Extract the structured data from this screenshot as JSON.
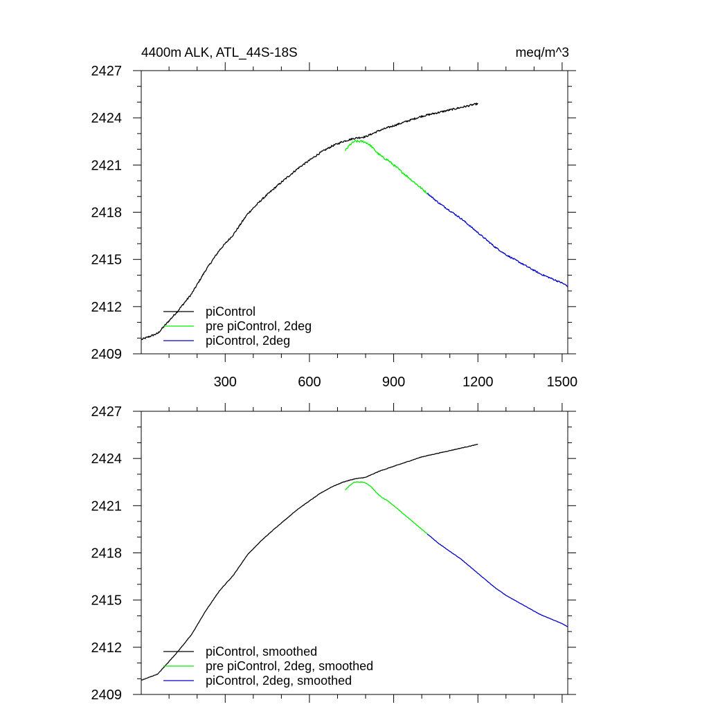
{
  "figure": {
    "title_left": "4400m ALK, ATL_44S-18S",
    "title_right": "meq/m^3"
  },
  "colors": {
    "piControl": "#000000",
    "pre_piControl_2deg": "#00ee00",
    "piControl_2deg": "#0000cc"
  },
  "chart_data": [
    {
      "type": "line",
      "title": "4400m ALK, ATL_44S-18S",
      "units": "meq/m^3",
      "xlim": [
        1,
        1520
      ],
      "ylim": [
        2409,
        2427
      ],
      "xticks": [
        300,
        600,
        900,
        1200,
        1500
      ],
      "xtick_labels": [
        "300",
        "600",
        "900",
        "1200",
        "1500"
      ],
      "yticks": [
        2409,
        2412,
        2415,
        2418,
        2421,
        2424,
        2427
      ],
      "ytick_labels": [
        "2409",
        "2412",
        "2415",
        "2418",
        "2421",
        "2424",
        "2427"
      ],
      "grid": false,
      "legend_position": "bottom-left",
      "series": [
        {
          "name": "piControl",
          "color": "#000000",
          "noise": 0.06,
          "x": [
            1,
            60,
            130,
            180,
            230,
            280,
            330,
            380,
            430,
            480,
            520,
            560,
            600,
            640,
            680,
            720,
            760,
            800,
            850,
            900,
            950,
            1000,
            1050,
            1100,
            1150,
            1200
          ],
          "y": [
            2409.9,
            2410.3,
            2411.7,
            2412.8,
            2414.3,
            2415.6,
            2416.6,
            2417.9,
            2418.8,
            2419.6,
            2420.2,
            2420.8,
            2421.3,
            2421.8,
            2422.2,
            2422.5,
            2422.7,
            2422.8,
            2423.2,
            2423.5,
            2423.8,
            2424.1,
            2424.3,
            2424.5,
            2424.7,
            2424.9
          ]
        },
        {
          "name": "pre piControl, 2deg",
          "color": "#00ee00",
          "noise": 0.07,
          "x": [
            727,
            745,
            760,
            775,
            790,
            805,
            820,
            840,
            860,
            880,
            900,
            920,
            940,
            960,
            980,
            1000,
            1020
          ],
          "y": [
            2421.9,
            2422.3,
            2422.5,
            2422.5,
            2422.5,
            2422.4,
            2422.2,
            2421.8,
            2421.5,
            2421.3,
            2421.0,
            2420.7,
            2420.4,
            2420.1,
            2419.8,
            2419.5,
            2419.2
          ]
        },
        {
          "name": "piControl, 2deg",
          "color": "#0000cc",
          "noise": 0.05,
          "x": [
            1020,
            1060,
            1100,
            1140,
            1180,
            1220,
            1260,
            1300,
            1340,
            1380,
            1420,
            1460,
            1500,
            1520
          ],
          "y": [
            2419.2,
            2418.6,
            2418.1,
            2417.6,
            2417.0,
            2416.4,
            2415.8,
            2415.3,
            2414.9,
            2414.5,
            2414.1,
            2413.8,
            2413.5,
            2413.3
          ]
        }
      ]
    },
    {
      "type": "line",
      "xlim": [
        1,
        1520
      ],
      "ylim": [
        2409,
        2427
      ],
      "xticks": [
        300,
        600,
        900,
        1200,
        1500
      ],
      "xtick_labels": [],
      "yticks": [
        2409,
        2412,
        2415,
        2418,
        2421,
        2424,
        2427
      ],
      "ytick_labels": [
        "2409",
        "2412",
        "2415",
        "2418",
        "2421",
        "2424",
        "2427"
      ],
      "grid": false,
      "legend_position": "bottom-left",
      "series": [
        {
          "name": "piControl, smoothed",
          "color": "#000000",
          "noise": 0.015,
          "x": [
            1,
            60,
            130,
            180,
            230,
            280,
            330,
            380,
            430,
            480,
            520,
            560,
            600,
            640,
            680,
            720,
            760,
            800,
            850,
            900,
            950,
            1000,
            1050,
            1100,
            1150,
            1200
          ],
          "y": [
            2409.9,
            2410.3,
            2411.7,
            2412.8,
            2414.3,
            2415.6,
            2416.6,
            2417.9,
            2418.8,
            2419.6,
            2420.2,
            2420.8,
            2421.3,
            2421.8,
            2422.2,
            2422.5,
            2422.7,
            2422.8,
            2423.2,
            2423.5,
            2423.8,
            2424.1,
            2424.3,
            2424.5,
            2424.7,
            2424.9
          ]
        },
        {
          "name": "pre piControl, 2deg, smoothed",
          "color": "#00ee00",
          "noise": 0.015,
          "x": [
            727,
            745,
            760,
            775,
            790,
            805,
            820,
            840,
            860,
            880,
            900,
            920,
            940,
            960,
            980,
            1000,
            1020
          ],
          "y": [
            2422.0,
            2422.3,
            2422.5,
            2422.5,
            2422.5,
            2422.4,
            2422.2,
            2421.8,
            2421.5,
            2421.3,
            2421.0,
            2420.7,
            2420.4,
            2420.1,
            2419.8,
            2419.5,
            2419.2
          ]
        },
        {
          "name": "piControl, 2deg, smoothed",
          "color": "#0000cc",
          "noise": 0.012,
          "x": [
            1020,
            1060,
            1100,
            1140,
            1180,
            1220,
            1260,
            1300,
            1340,
            1380,
            1420,
            1460,
            1500,
            1520
          ],
          "y": [
            2419.2,
            2418.6,
            2418.1,
            2417.6,
            2417.0,
            2416.4,
            2415.8,
            2415.3,
            2414.9,
            2414.5,
            2414.1,
            2413.8,
            2413.5,
            2413.3
          ]
        }
      ]
    }
  ]
}
